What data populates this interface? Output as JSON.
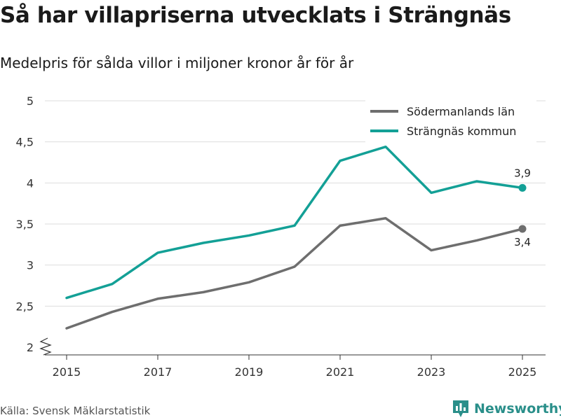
{
  "title": "Så har villapriserna utvecklats i Strängnäs",
  "subtitle": "Medelpris för sålda villor i miljoner kronor år för år",
  "source": "Källa: Svensk Mäklarstatistik",
  "brand": "Newsworthy",
  "colors": {
    "grid": "#dddddd",
    "axis": "#333333",
    "text": "#333333",
    "brand": "#2a8f8a"
  },
  "chart_data": {
    "type": "line",
    "title": "Så har villapriserna utvecklats i Strängnäs",
    "subtitle": "Medelpris för sålda villor i miljoner kronor år för år",
    "xlabel": "",
    "ylabel": "",
    "x": [
      2015,
      2016,
      2017,
      2018,
      2019,
      2020,
      2021,
      2022,
      2023,
      2024,
      2025
    ],
    "xticks": [
      2015,
      2017,
      2019,
      2021,
      2023,
      2025
    ],
    "xtick_labels": [
      "2015",
      "2017",
      "2019",
      "2021",
      "2023",
      "2025"
    ],
    "ylim": [
      2,
      5
    ],
    "yticks": [
      2,
      2.5,
      3,
      3.5,
      4,
      4.5,
      5
    ],
    "ytick_labels": [
      "2",
      "2,5",
      "3",
      "3,5",
      "4",
      "4,5",
      "5"
    ],
    "grid": true,
    "legend_position": "top-right",
    "series": [
      {
        "name": "Södermanlands län",
        "color": "#6e6e6e",
        "values": [
          2.23,
          2.43,
          2.59,
          2.67,
          2.79,
          2.98,
          3.48,
          3.57,
          3.18,
          3.3,
          3.44
        ],
        "end_label": "3,4"
      },
      {
        "name": "Strängnäs kommun",
        "color": "#13a096",
        "values": [
          2.6,
          2.77,
          3.15,
          3.27,
          3.36,
          3.48,
          4.27,
          4.44,
          3.88,
          4.02,
          3.94
        ],
        "end_label": "3,9"
      }
    ]
  }
}
